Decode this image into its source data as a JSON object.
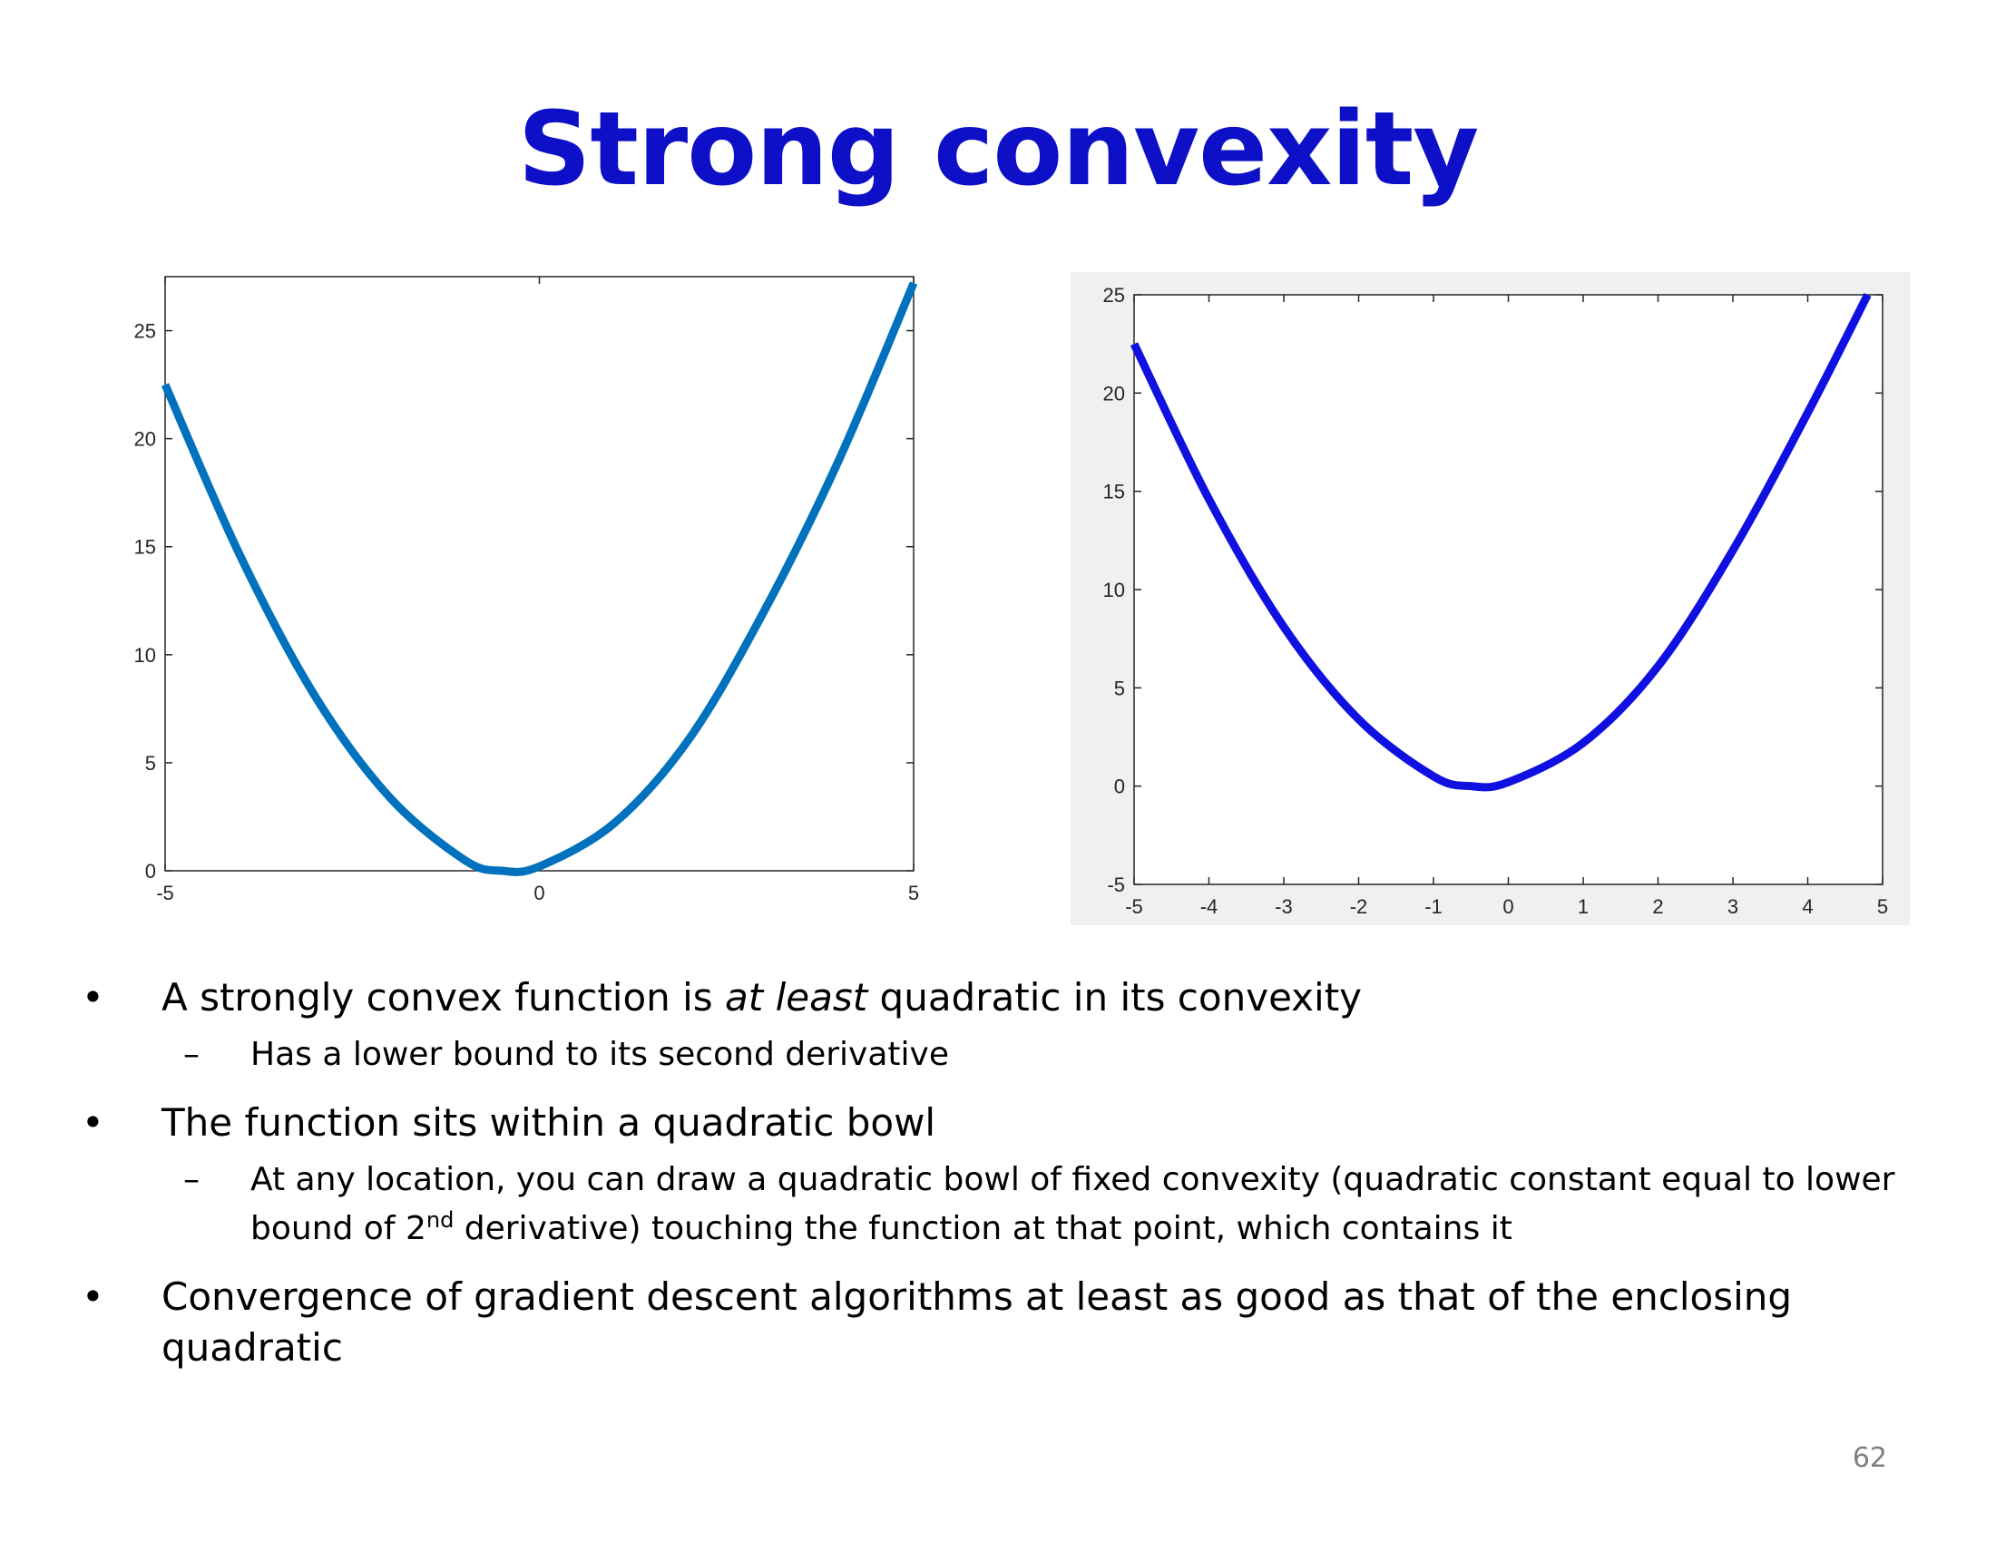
{
  "title": "Strong convexity",
  "chart_data": [
    {
      "type": "line",
      "xlim": [
        -5,
        5
      ],
      "ylim": [
        0,
        27.5
      ],
      "xticks": [
        -5,
        0,
        5
      ],
      "xtick_labels": [
        "-5",
        "0",
        "5"
      ],
      "yticks": [
        0,
        5,
        10,
        15,
        20,
        25
      ],
      "ytick_labels": [
        "0",
        "5",
        "10",
        "15",
        "20",
        "25"
      ],
      "background": "#ffffff",
      "line_color": "#0072bd",
      "series": [
        {
          "x": [
            -5,
            -4,
            -3,
            -2,
            -1,
            -0.5,
            0,
            1,
            2,
            3,
            4,
            5
          ],
          "y": [
            22.5,
            14.6,
            8.1,
            3.4,
            0.5,
            0,
            0.2,
            2.2,
            6.1,
            12,
            19,
            27.2
          ]
        }
      ]
    },
    {
      "type": "line",
      "xlim": [
        -5,
        5
      ],
      "ylim": [
        -5,
        25
      ],
      "xticks": [
        -5,
        -4,
        -3,
        -2,
        -1,
        0,
        1,
        2,
        3,
        4,
        5
      ],
      "xtick_labels": [
        "-5",
        "-4",
        "-3",
        "-2",
        "-1",
        "0",
        "1",
        "2",
        "3",
        "4",
        "5"
      ],
      "yticks": [
        -5,
        0,
        5,
        10,
        15,
        20,
        25
      ],
      "ytick_labels": [
        "-5",
        "0",
        "5",
        "10",
        "15",
        "20",
        "25"
      ],
      "background": "#f0f0f0",
      "line_color": "#1010e0",
      "series": [
        {
          "x": [
            -5,
            -4,
            -3,
            -2,
            -1,
            -0.5,
            0,
            1,
            2,
            3,
            4,
            4.8
          ],
          "y": [
            22.5,
            14.6,
            8.1,
            3.4,
            0.5,
            0,
            0.2,
            2.2,
            6.1,
            12,
            19,
            25
          ]
        }
      ]
    }
  ],
  "bullets": [
    {
      "text_before": "A strongly convex function is ",
      "emphasis": "at least",
      "text_after": " quadratic in its convexity",
      "sub": "Has a lower bound to its second derivative"
    },
    {
      "text": "The function sits within a quadratic bowl",
      "sub_before": "At any location, you can draw a quadratic bowl of fixed convexity (quadratic constant equal to lower bound of 2",
      "sub_sup": "nd",
      "sub_after": " derivative) touching the function at that point, which contains it"
    },
    {
      "text": "Convergence of gradient descent algorithms at least as good as that of the enclosing quadratic"
    }
  ],
  "bullet_symbol": "•",
  "dash_symbol": "–",
  "page_number": "62"
}
